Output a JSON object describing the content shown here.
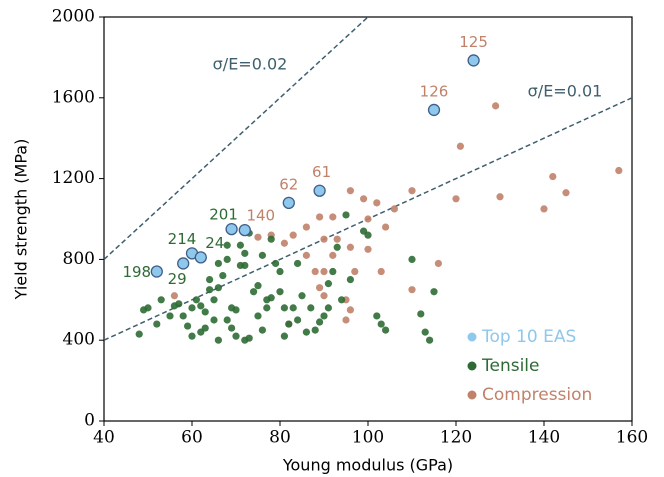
{
  "chart_data": {
    "type": "scatter",
    "x_label": "Young modulus (GPa)",
    "y_label": "Yield strength (MPa)",
    "xlim": [
      40,
      160
    ],
    "ylim": [
      0,
      2000
    ],
    "xticks": [
      40,
      60,
      80,
      100,
      120,
      140,
      160
    ],
    "yticks": [
      0,
      400,
      800,
      1200,
      1600,
      2000
    ],
    "legend_position": "lower right",
    "lines": [
      {
        "label": "σ/E=0.02",
        "color": "#3e5f6e",
        "x": [
          40,
          100
        ],
        "y": [
          800,
          2000
        ]
      },
      {
        "label": "σ/E=0.01",
        "color": "#3e5f6e",
        "x": [
          40,
          160
        ],
        "y": [
          400,
          1600
        ]
      }
    ],
    "series": [
      {
        "name": "Compression",
        "color": "#c0826a",
        "x": [
          96,
          99,
          100,
          102,
          104,
          106,
          110,
          121,
          129,
          130,
          120,
          140,
          142,
          145,
          157,
          92,
          89,
          86,
          90,
          93,
          96,
          100,
          88,
          90,
          92,
          97,
          103,
          110,
          116,
          89,
          90,
          95,
          96,
          95,
          82,
          56,
          81,
          86,
          75,
          78,
          83
        ],
        "values": [
          1140,
          1100,
          1000,
          1080,
          960,
          1050,
          1140,
          1360,
          1560,
          1110,
          1100,
          1050,
          1210,
          1130,
          1240,
          1010,
          1010,
          960,
          900,
          900,
          860,
          850,
          740,
          740,
          820,
          740,
          740,
          650,
          780,
          660,
          620,
          600,
          550,
          500,
          480,
          620,
          880,
          820,
          910,
          920,
          920
        ]
      },
      {
        "name": "Tensile",
        "color": "#2e6b34",
        "x": [
          48,
          49,
          50,
          52,
          53,
          55,
          56,
          57,
          58,
          59,
          60,
          60,
          61,
          62,
          62,
          63,
          63,
          64,
          64,
          65,
          65,
          66,
          66,
          66,
          67,
          68,
          68,
          69,
          69,
          70,
          70,
          71,
          71,
          72,
          72,
          73,
          74,
          75,
          75,
          76,
          77,
          77,
          78,
          78,
          79,
          80,
          81,
          81,
          82,
          83,
          84,
          84,
          85,
          86,
          87,
          88,
          89,
          90,
          91,
          91,
          92,
          93,
          94,
          95,
          96,
          99,
          100,
          102,
          103,
          104,
          110,
          112,
          113,
          114,
          115,
          68,
          73,
          72,
          80,
          76
        ],
        "values": [
          430,
          550,
          560,
          480,
          600,
          520,
          570,
          580,
          520,
          470,
          420,
          560,
          600,
          440,
          570,
          460,
          540,
          650,
          700,
          600,
          500,
          780,
          660,
          400,
          720,
          800,
          500,
          560,
          460,
          550,
          420,
          770,
          870,
          400,
          830,
          410,
          640,
          520,
          670,
          450,
          560,
          600,
          610,
          900,
          780,
          640,
          560,
          420,
          480,
          560,
          780,
          500,
          620,
          440,
          560,
          450,
          490,
          520,
          560,
          680,
          740,
          860,
          600,
          1020,
          700,
          940,
          920,
          520,
          480,
          450,
          800,
          530,
          440,
          400,
          640,
          870,
          930,
          770,
          740,
          820
        ]
      },
      {
        "name": "Top 10 EAS",
        "color": "#8ec8ec",
        "x": [
          124,
          115,
          89,
          82,
          72,
          69,
          60,
          62,
          58,
          52
        ],
        "values": [
          1785,
          1540,
          1140,
          1080,
          945,
          950,
          830,
          810,
          780,
          740
        ],
        "point_labels": [
          "125",
          "126",
          "61",
          "62",
          "140",
          "201",
          "214",
          "24",
          "29",
          "198"
        ],
        "label_colors": [
          "#c0826a",
          "#c0826a",
          "#c0826a",
          "#c0826a",
          "#c0826a",
          "#2e6b34",
          "#2e6b34",
          "#2e6b34",
          "#2e6b34",
          "#2e6b34"
        ]
      }
    ]
  }
}
